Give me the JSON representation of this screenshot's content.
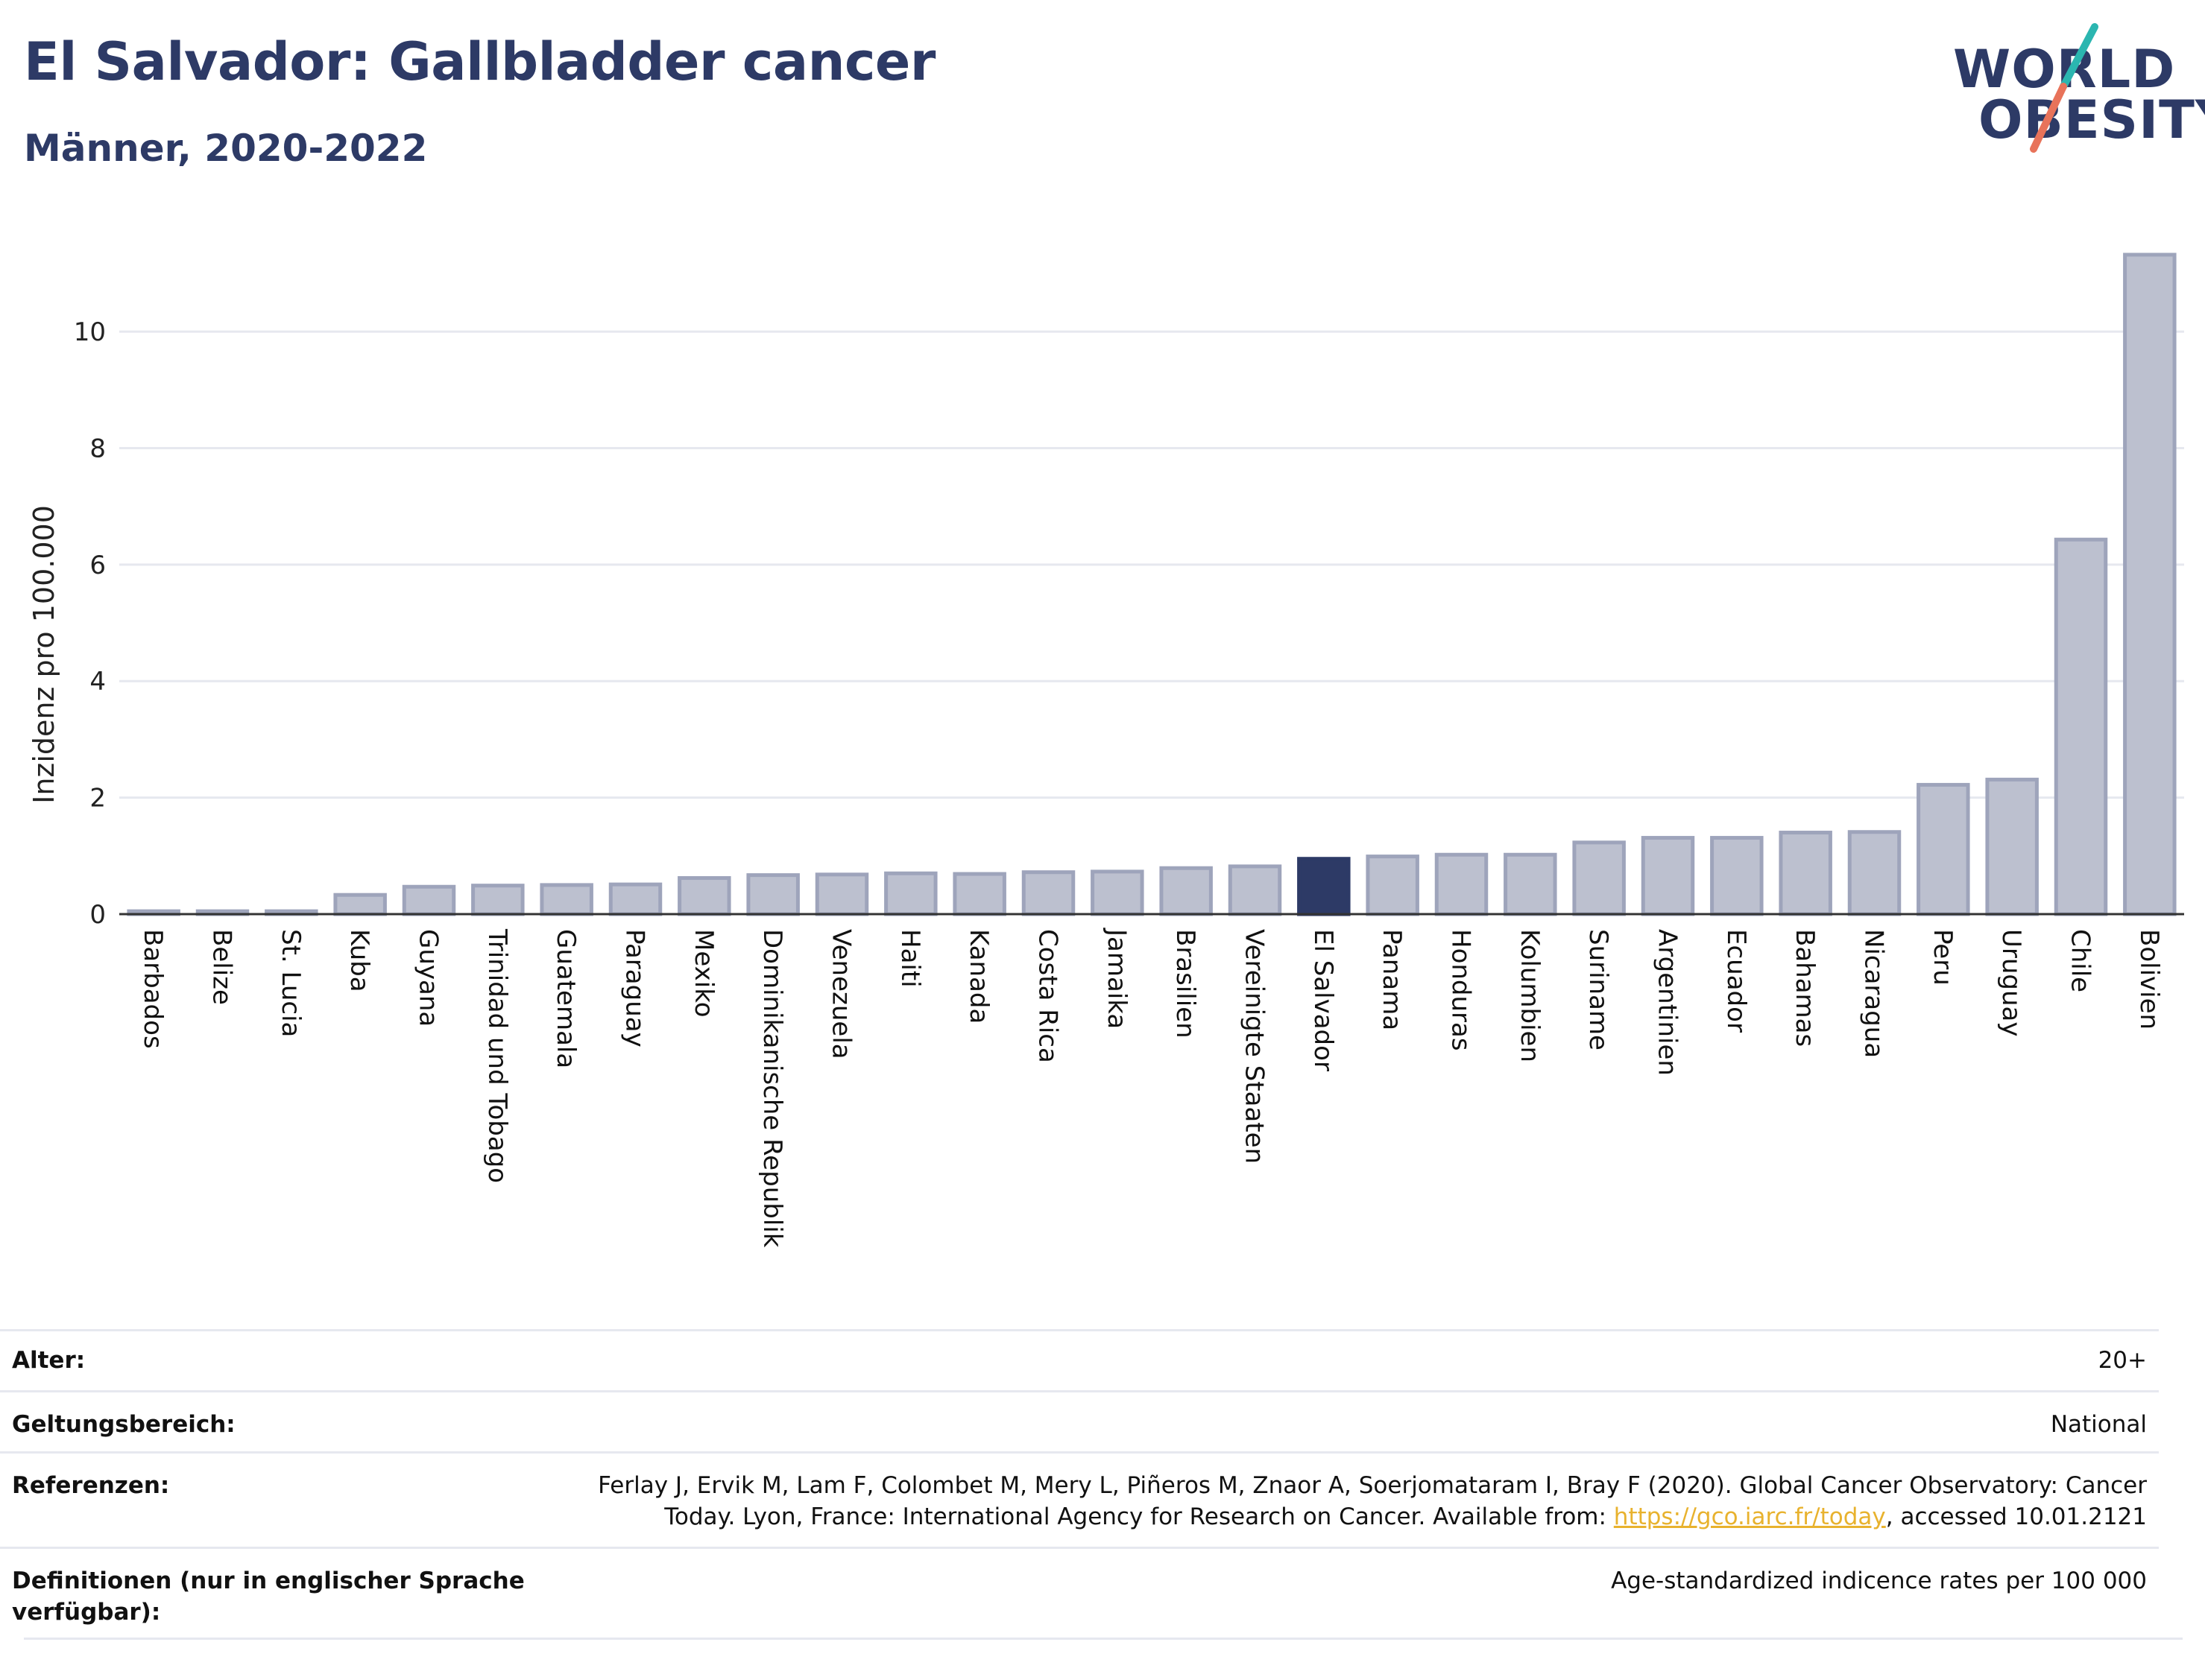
{
  "header": {
    "title": "El Salvador: Gallbladder cancer",
    "subtitle": "Männer, 2020-2022"
  },
  "logo": {
    "line1": "WORLD",
    "line2": "OBESITY",
    "accent_colors": [
      "#2bb6b0",
      "#e8735a"
    ]
  },
  "colors": {
    "highlight": "#2d3a66",
    "bar": "#bcc0cf",
    "bar_stroke": "#9ea4bb",
    "grid": "#e6e8ef",
    "link": "#e8b22e"
  },
  "chart_data": {
    "type": "bar",
    "ylabel": "Inzidenz pro 100.000",
    "ylim": [
      0,
      11.6
    ],
    "yticks": [
      0,
      2,
      4,
      6,
      8,
      10
    ],
    "grid": true,
    "highlight": "El Salvador",
    "categories": [
      "Barbados",
      "Belize",
      "St. Lucia",
      "Kuba",
      "Guyana",
      "Trinidad und Tobago",
      "Guatemala",
      "Paraguay",
      "Mexiko",
      "Dominikanische Republik",
      "Venezuela",
      "Haiti",
      "Kanada",
      "Costa Rica",
      "Jamaika",
      "Brasilien",
      "Vereinigte Staaten",
      "El Salvador",
      "Panama",
      "Honduras",
      "Kolumbien",
      "Suriname",
      "Argentinien",
      "Ecuador",
      "Bahamas",
      "Nicaragua",
      "Peru",
      "Uruguay",
      "Chile",
      "Bolivien"
    ],
    "values": [
      0.05,
      0.05,
      0.05,
      0.33,
      0.47,
      0.49,
      0.5,
      0.51,
      0.62,
      0.67,
      0.68,
      0.7,
      0.69,
      0.72,
      0.73,
      0.79,
      0.82,
      0.95,
      0.99,
      1.02,
      1.02,
      1.23,
      1.31,
      1.31,
      1.4,
      1.41,
      2.22,
      2.31,
      6.43,
      11.32
    ]
  },
  "meta": [
    {
      "key": "Alter:",
      "value": "20+"
    },
    {
      "key": "Geltungsbereich:",
      "value": "National"
    },
    {
      "key": "Referenzen:",
      "value_line1": "Ferlay J, Ervik M, Lam F, Colombet M, Mery L, Piñeros M, Znaor A, Soerjomataram I, Bray F (2020). Global Cancer Observatory: Cancer",
      "value_line2_pre": "Today. Lyon, France: International Agency for Research on Cancer. Available from: ",
      "value_link": "https://gco.iarc.fr/today",
      "value_line2_post": ", accessed 10.01.2121"
    },
    {
      "key_line1": "Definitionen (nur in englischer Sprache",
      "key_line2": "verfügbar):",
      "value": "Age-standardized indicence rates per 100 000"
    }
  ]
}
